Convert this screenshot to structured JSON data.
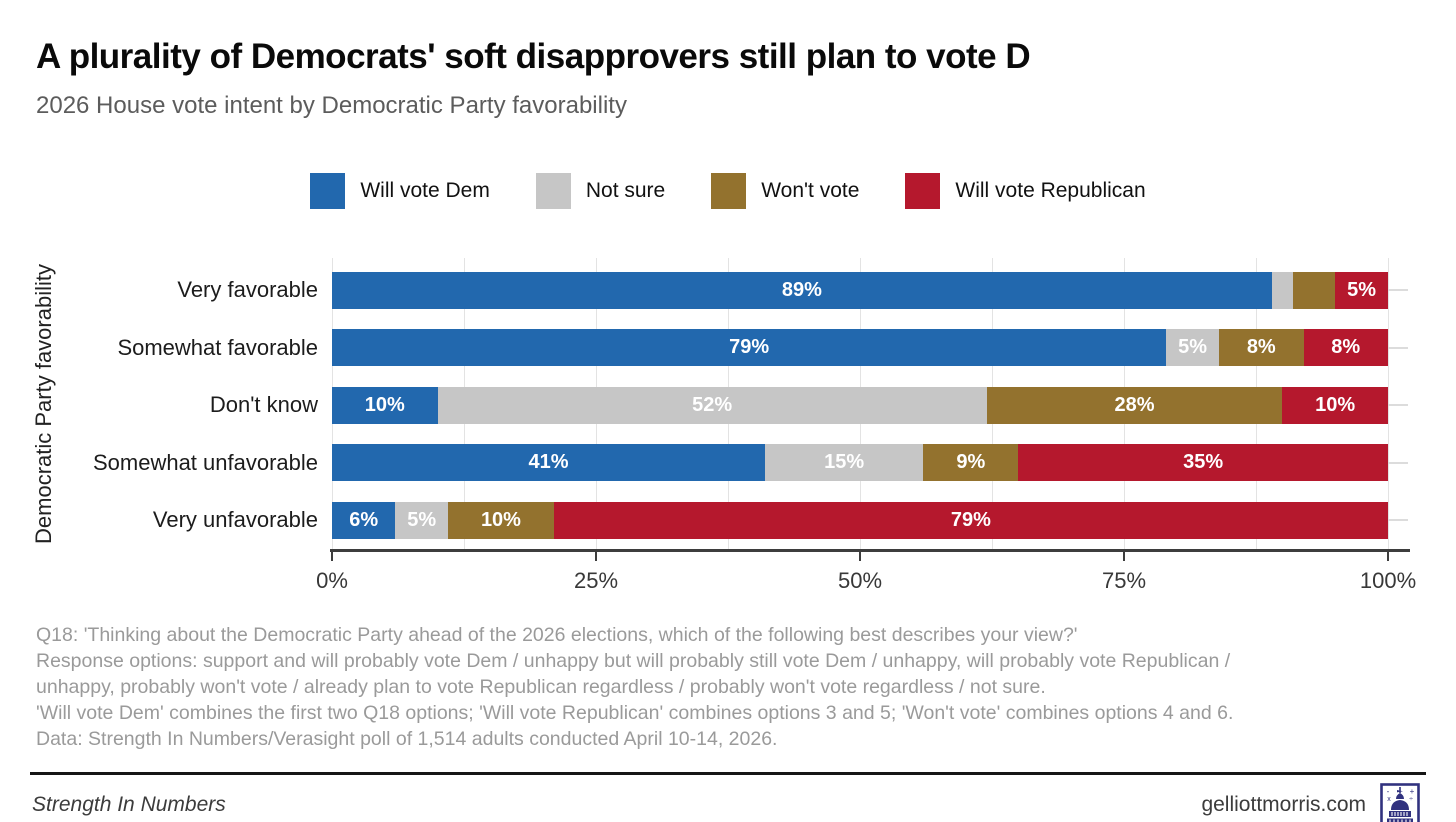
{
  "header": {
    "title": "A plurality of Democrats' soft disapprovers still plan to vote D",
    "subtitle": "2026 House vote intent by Democratic Party favorability"
  },
  "chart_data": {
    "type": "bar",
    "stacked": true,
    "orientation": "horizontal",
    "ylabel": "Democratic Party favorability",
    "categories": [
      "Very favorable",
      "Somewhat favorable",
      "Don't know",
      "Somewhat unfavorable",
      "Very unfavorable"
    ],
    "series": [
      {
        "name": "Will vote Dem",
        "color": "#2268ae",
        "values": [
          89,
          79,
          10,
          41,
          6
        ]
      },
      {
        "name": "Not sure",
        "color": "#c6c6c6",
        "values": [
          2,
          5,
          52,
          15,
          5
        ]
      },
      {
        "name": "Won't vote",
        "color": "#93722e",
        "values": [
          4,
          8,
          28,
          9,
          10
        ]
      },
      {
        "name": "Will vote Republican",
        "color": "#b5182d",
        "values": [
          5,
          8,
          10,
          35,
          79
        ]
      }
    ],
    "x_ticks": [
      "0%",
      "25%",
      "50%",
      "75%",
      "100%"
    ],
    "xlim": [
      0,
      100
    ],
    "gridlines_pct": [
      0,
      12.5,
      25,
      37.5,
      50,
      62.5,
      75,
      87.5,
      100
    ],
    "label_suffix": "%",
    "label_min_pct": 5,
    "legend_position": "top"
  },
  "footnotes": [
    "Q18: 'Thinking about the Democratic Party ahead of the 2026 elections, which of the following best describes your view?'",
    "Response options: support and will probably vote Dem / unhappy but will probably still vote Dem / unhappy, will probably vote Republican /",
    "unhappy, probably won't vote / already plan to vote Republican regardless / probably won't vote regardless / not sure.",
    "'Will vote Dem' combines the first two Q18 options; 'Will vote Republican' combines options 3 and 5; 'Won't vote' combines options 4 and 6.",
    "Data: Strength In Numbers/Verasight poll of 1,514 adults conducted April 10-14, 2026."
  ],
  "footer": {
    "brand": "Strength In Numbers",
    "site": "gelliottmorris.com",
    "logo_color": "#31327f"
  }
}
